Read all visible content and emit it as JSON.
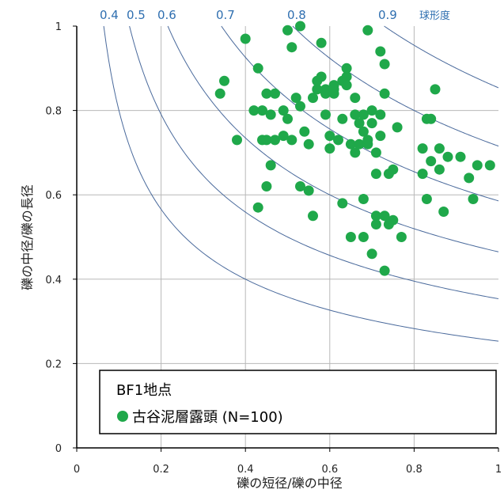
{
  "chart_data": {
    "type": "scatter",
    "title": "",
    "xlabel": "礫の短径/礫の中径",
    "ylabel": "礫の中径/礫の長径",
    "xlim": [
      0,
      1
    ],
    "ylim": [
      0,
      1
    ],
    "x_ticks": [
      "0",
      "0.2",
      "0.4",
      "0.6",
      "0.8",
      "1"
    ],
    "y_ticks": [
      "0",
      "0.2",
      "0.4",
      "0.6",
      "0.8",
      "1"
    ],
    "grid": true,
    "sphericity_curves": {
      "title": "球形度",
      "levels": [
        0.4,
        0.5,
        0.6,
        0.7,
        0.8,
        0.9
      ],
      "labels": [
        "0.4",
        "0.5",
        "0.6",
        "0.7",
        "0.8",
        "0.9"
      ]
    },
    "legend": {
      "position": "bottom-right",
      "title": "BF1地点",
      "entry": "古谷泥層露頭 (N=100)"
    },
    "colors": {
      "points": "#1fa84a",
      "curves": "#4a6a9c",
      "grid": "#b8b8b8",
      "curve_labels": "#2f6fb0"
    },
    "series": [
      {
        "points": [
          [
            0.34,
            0.84
          ],
          [
            0.35,
            0.87
          ],
          [
            0.38,
            0.73
          ],
          [
            0.4,
            0.97
          ],
          [
            0.42,
            0.8
          ],
          [
            0.43,
            0.9
          ],
          [
            0.44,
            0.73
          ],
          [
            0.44,
            0.8
          ],
          [
            0.45,
            0.84
          ],
          [
            0.45,
            0.73
          ],
          [
            0.46,
            0.67
          ],
          [
            0.46,
            0.79
          ],
          [
            0.47,
            0.73
          ],
          [
            0.45,
            0.62
          ],
          [
            0.43,
            0.57
          ],
          [
            0.49,
            0.74
          ],
          [
            0.49,
            0.8
          ],
          [
            0.5,
            0.99
          ],
          [
            0.5,
            0.78
          ],
          [
            0.51,
            0.95
          ],
          [
            0.52,
            0.83
          ],
          [
            0.53,
            1.0
          ],
          [
            0.53,
            0.81
          ],
          [
            0.53,
            0.62
          ],
          [
            0.54,
            0.75
          ],
          [
            0.55,
            0.72
          ],
          [
            0.55,
            0.61
          ],
          [
            0.56,
            0.55
          ],
          [
            0.56,
            0.83
          ],
          [
            0.57,
            0.87
          ],
          [
            0.58,
            0.96
          ],
          [
            0.58,
            0.88
          ],
          [
            0.59,
            0.84
          ],
          [
            0.59,
            0.85
          ],
          [
            0.59,
            0.79
          ],
          [
            0.6,
            0.71
          ],
          [
            0.6,
            0.74
          ],
          [
            0.61,
            0.84
          ],
          [
            0.61,
            0.86
          ],
          [
            0.61,
            0.85
          ],
          [
            0.62,
            0.73
          ],
          [
            0.63,
            0.58
          ],
          [
            0.63,
            0.78
          ],
          [
            0.63,
            0.87
          ],
          [
            0.64,
            0.88
          ],
          [
            0.64,
            0.9
          ],
          [
            0.64,
            0.86
          ],
          [
            0.65,
            0.5
          ],
          [
            0.65,
            0.72
          ],
          [
            0.66,
            0.7
          ],
          [
            0.66,
            0.83
          ],
          [
            0.67,
            0.72
          ],
          [
            0.67,
            0.77
          ],
          [
            0.68,
            0.59
          ],
          [
            0.68,
            0.5
          ],
          [
            0.68,
            0.75
          ],
          [
            0.68,
            0.79
          ],
          [
            0.69,
            0.72
          ],
          [
            0.69,
            0.99
          ],
          [
            0.7,
            0.46
          ],
          [
            0.7,
            0.77
          ],
          [
            0.7,
            0.8
          ],
          [
            0.71,
            0.55
          ],
          [
            0.71,
            0.53
          ],
          [
            0.71,
            0.65
          ],
          [
            0.71,
            0.7
          ],
          [
            0.72,
            0.74
          ],
          [
            0.72,
            0.79
          ],
          [
            0.72,
            0.94
          ],
          [
            0.73,
            0.42
          ],
          [
            0.73,
            0.55
          ],
          [
            0.73,
            0.91
          ],
          [
            0.73,
            0.84
          ],
          [
            0.74,
            0.53
          ],
          [
            0.74,
            0.65
          ],
          [
            0.75,
            0.54
          ],
          [
            0.75,
            0.66
          ],
          [
            0.76,
            0.76
          ],
          [
            0.77,
            0.5
          ],
          [
            0.82,
            0.71
          ],
          [
            0.82,
            0.65
          ],
          [
            0.83,
            0.78
          ],
          [
            0.83,
            0.59
          ],
          [
            0.84,
            0.68
          ],
          [
            0.84,
            0.78
          ],
          [
            0.85,
            0.85
          ],
          [
            0.86,
            0.71
          ],
          [
            0.86,
            0.66
          ],
          [
            0.87,
            0.56
          ],
          [
            0.88,
            0.69
          ],
          [
            0.91,
            0.69
          ],
          [
            0.93,
            0.64
          ],
          [
            0.94,
            0.59
          ],
          [
            0.95,
            0.67
          ],
          [
            0.98,
            0.67
          ],
          [
            0.47,
            0.84
          ],
          [
            0.51,
            0.73
          ],
          [
            0.57,
            0.85
          ],
          [
            0.66,
            0.79
          ],
          [
            0.69,
            0.73
          ]
        ]
      }
    ]
  }
}
